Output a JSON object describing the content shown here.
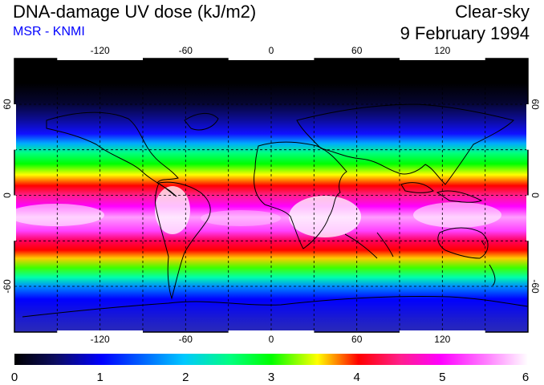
{
  "header": {
    "title": "DNA-damage UV dose (kJ/m2)",
    "subtitle": "MSR - KNMI",
    "condition": "Clear-sky",
    "date": "9 February 1994"
  },
  "map": {
    "lon_range": [
      -180,
      180
    ],
    "lat_range": [
      -90,
      90
    ],
    "lon_ticks": [
      "-120",
      "-60",
      "0",
      "60",
      "120"
    ],
    "lat_ticks": [
      "60",
      "0",
      "-60"
    ]
  },
  "colorbar": {
    "min": 0,
    "max": 6,
    "labels": [
      "0",
      "1",
      "2",
      "3",
      "4",
      "5",
      "6"
    ]
  },
  "colors": {
    "scale": [
      "#000000",
      "#0c0c60",
      "#0000ff",
      "#00c8ff",
      "#00ff80",
      "#00ff00",
      "#ffff00",
      "#ff0000",
      "#ff1f8a",
      "#ff00ff",
      "#ffffff"
    ]
  }
}
